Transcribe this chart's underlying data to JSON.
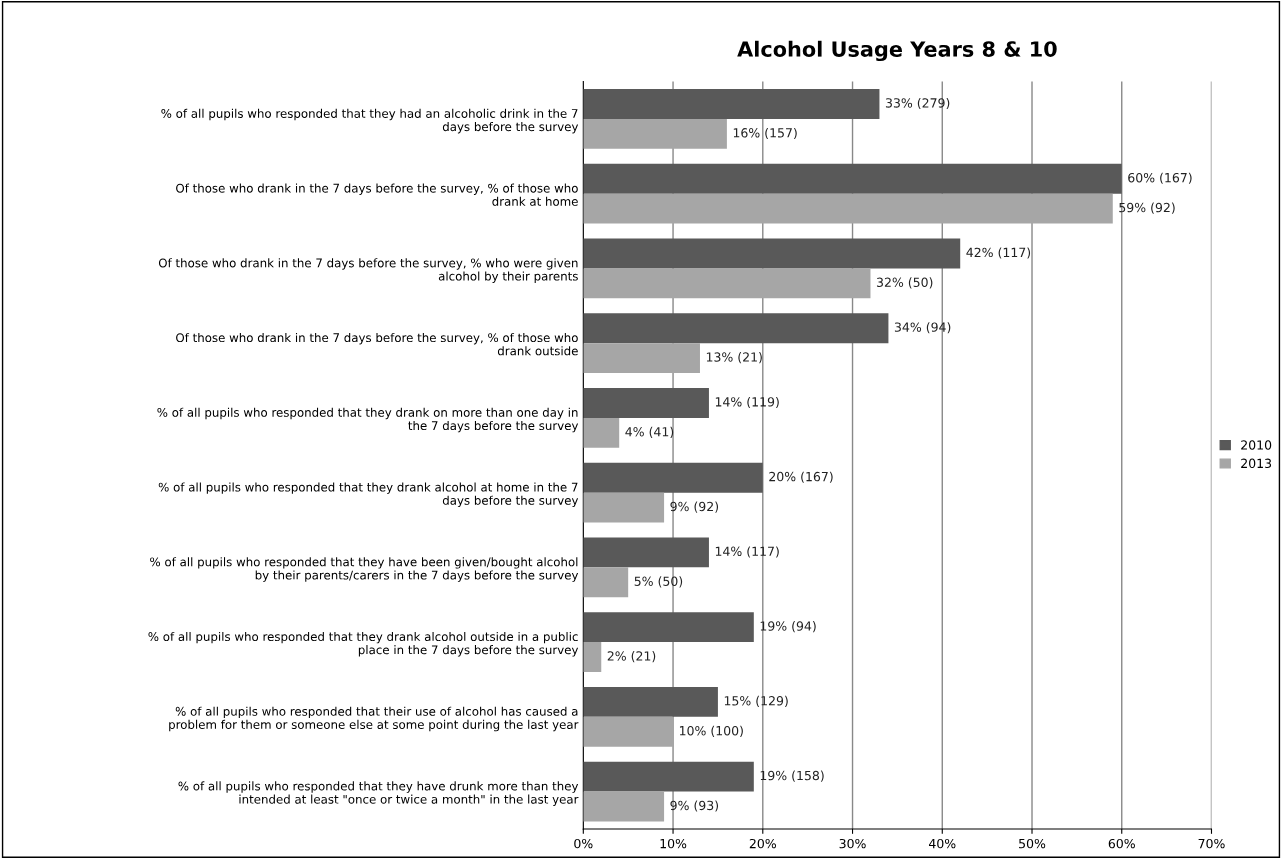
{
  "chart_data": {
    "type": "bar",
    "orientation": "horizontal",
    "title": "Alcohol Usage Years 8 & 10",
    "categories": [
      "% of all pupils who responded that they had an alcoholic drink in the 7\ndays before the survey",
      "Of those who drank in the 7 days before the survey, % of those who\ndrank at home",
      "Of those who drank in the 7 days before the survey, % who were given\nalcohol by their parents",
      "Of those who drank in the 7 days before the survey, % of those who\ndrank outside",
      "% of all pupils who responded that they drank on more than one day in\nthe 7 days before the survey",
      "% of all pupils who responded that they drank alcohol at home in the 7\ndays before the survey",
      "% of all pupils who responded that they have been given/bought alcohol\nby their parents/carers in the 7 days before the survey",
      "% of all pupils who responded that they drank alcohol outside in a public\nplace in the 7 days before the survey",
      "% of all pupils who responded that their use of alcohol has caused a\nproblem for them or someone else at some point during the last year",
      "% of all pupils who responded that they have drunk more than they\nintended at least \"once or twice a month\" in the last year"
    ],
    "series": [
      {
        "name": "2010",
        "color": "#595959",
        "values": [
          33,
          60,
          42,
          34,
          14,
          20,
          14,
          19,
          15,
          19
        ],
        "value_labels": [
          "33% (279)",
          "60% (167)",
          "42% (117)",
          "34% (94)",
          "14% (119)",
          "20% (167)",
          "14% (117)",
          "19% (94)",
          "15% (129)",
          "19% (158)"
        ]
      },
      {
        "name": "2013",
        "color": "#a6a6a6",
        "values": [
          16,
          59,
          32,
          13,
          4,
          9,
          5,
          2,
          10,
          9
        ],
        "value_labels": [
          "16% (157)",
          "59% (92)",
          "32% (50)",
          "13% (21)",
          "4% (41)",
          "9% (92)",
          "5% (50)",
          "2% (21)",
          "10% (100)",
          "9% (93)"
        ]
      }
    ],
    "xlim": [
      0,
      70
    ],
    "xticks": [
      {
        "value": 0,
        "label": "0%"
      },
      {
        "value": 10,
        "label": "10%"
      },
      {
        "value": 20,
        "label": "20%"
      },
      {
        "value": 30,
        "label": "30%"
      },
      {
        "value": 40,
        "label": "40%"
      },
      {
        "value": 50,
        "label": "50%"
      },
      {
        "value": 60,
        "label": "60%"
      },
      {
        "value": 70,
        "label": "70%"
      }
    ],
    "grid": "x",
    "legend": "right"
  }
}
